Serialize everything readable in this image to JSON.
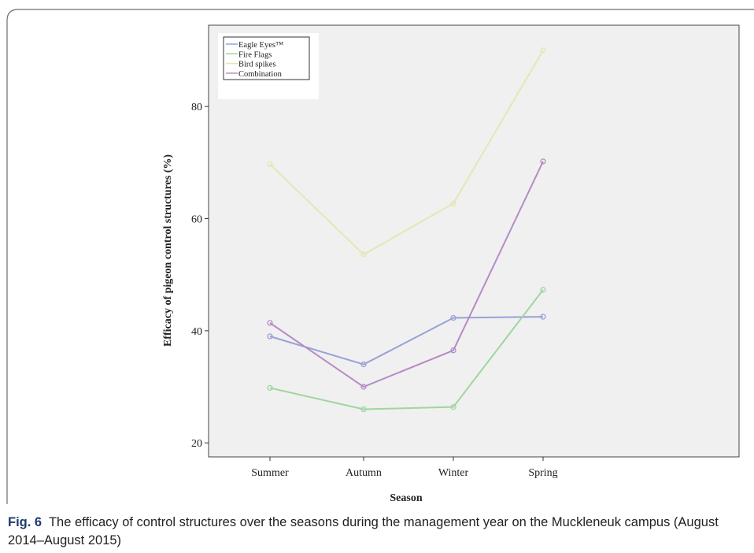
{
  "figure": {
    "label": "Fig. 6",
    "caption": "The efficacy of control structures over the seasons during the management year on the Muckleneuk campus (August 2014–August 2015)"
  },
  "chart_data": {
    "type": "line",
    "title": "",
    "xlabel": "Season",
    "ylabel": "Efficacy of pigeon control structures (%)",
    "categories": [
      "Summer",
      "Autumn",
      "Winter",
      "Spring"
    ],
    "ylim": [
      17.5,
      94.5
    ],
    "yticks": [
      20,
      40,
      60,
      80
    ],
    "grid": false,
    "legend_position": "top-left",
    "plot_background": "#f0f0f0",
    "series": [
      {
        "name": "Eagle Eyes™",
        "color": "#97a2d6",
        "values": [
          39.0,
          34.0,
          42.3,
          42.5
        ]
      },
      {
        "name": "Fire Flags",
        "color": "#9fd69f",
        "values": [
          29.8,
          26.0,
          26.4,
          47.3
        ]
      },
      {
        "name": "Bird spikes",
        "color": "#e6e6b4",
        "values": [
          69.7,
          53.6,
          62.7,
          90.0
        ]
      },
      {
        "name": "Combination",
        "color": "#b58bc6",
        "values": [
          41.4,
          30.0,
          36.5,
          70.2
        ]
      }
    ]
  }
}
